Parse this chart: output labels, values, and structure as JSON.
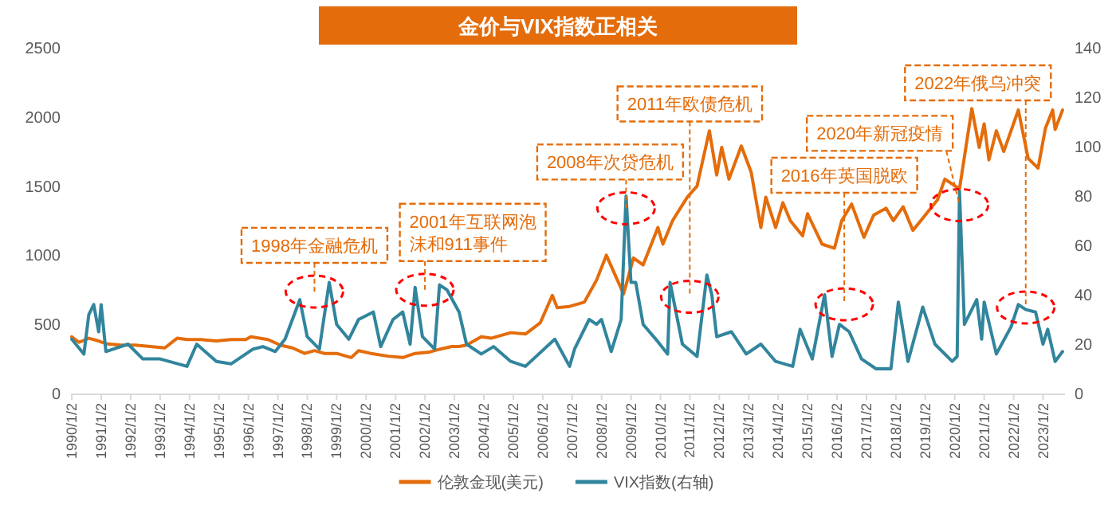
{
  "chart_data": {
    "type": "line",
    "title": "金价与VIX指数正相关",
    "xlim": [
      "1990-01-01",
      "2023-10-01"
    ],
    "xticks": [
      {
        "value": "1990-01-02",
        "label": "1990/1/2"
      },
      {
        "value": "1991-01-02",
        "label": "1991/1/2"
      },
      {
        "value": "1992-01-02",
        "label": "1992/1/2"
      },
      {
        "value": "1993-01-02",
        "label": "1993/1/2"
      },
      {
        "value": "1994-01-02",
        "label": "1994/1/2"
      },
      {
        "value": "1995-01-02",
        "label": "1995/1/2"
      },
      {
        "value": "1996-01-02",
        "label": "1996/1/2"
      },
      {
        "value": "1997-01-02",
        "label": "1997/1/2"
      },
      {
        "value": "1998-01-02",
        "label": "1998/1/2"
      },
      {
        "value": "1999-01-02",
        "label": "1999/1/2"
      },
      {
        "value": "2000-01-02",
        "label": "2000/1/2"
      },
      {
        "value": "2001-01-02",
        "label": "2001/1/2"
      },
      {
        "value": "2002-01-02",
        "label": "2002/1/2"
      },
      {
        "value": "2003-01-02",
        "label": "2003/1/2"
      },
      {
        "value": "2004-01-02",
        "label": "2004/1/2"
      },
      {
        "value": "2005-01-02",
        "label": "2005/1/2"
      },
      {
        "value": "2006-01-02",
        "label": "2006/1/2"
      },
      {
        "value": "2007-01-02",
        "label": "2007/1/2"
      },
      {
        "value": "2008-01-02",
        "label": "2008/1/2"
      },
      {
        "value": "2009-01-02",
        "label": "2009/1/2"
      },
      {
        "value": "2010-01-02",
        "label": "2010/1/2"
      },
      {
        "value": "2011-01-02",
        "label": "2011/1/2"
      },
      {
        "value": "2012-01-02",
        "label": "2012/1/2"
      },
      {
        "value": "2013-01-02",
        "label": "2013/1/2"
      },
      {
        "value": "2014-01-02",
        "label": "2014/1/2"
      },
      {
        "value": "2015-01-02",
        "label": "2015/1/2"
      },
      {
        "value": "2016-01-02",
        "label": "2016/1/2"
      },
      {
        "value": "2017-01-02",
        "label": "2017/1/2"
      },
      {
        "value": "2018-01-02",
        "label": "2018/1/2"
      },
      {
        "value": "2019-01-02",
        "label": "2019/1/2"
      },
      {
        "value": "2020-01-02",
        "label": "2020/1/2"
      },
      {
        "value": "2021-01-02",
        "label": "2021/1/2"
      },
      {
        "value": "2022-01-02",
        "label": "2022/1/2"
      },
      {
        "value": "2023-01-02",
        "label": "2023/1/2"
      }
    ],
    "ylim": [
      0,
      2500
    ],
    "yticks": [
      0,
      500,
      1000,
      1500,
      2000,
      2500
    ],
    "y2lim": [
      0,
      140
    ],
    "y2ticks": [
      0,
      20,
      40,
      60,
      80,
      100,
      120,
      140
    ],
    "grid": false,
    "legend": "bottom",
    "marker": "none",
    "line_style": "solid",
    "series": [
      {
        "name": "伦敦金现(美元)",
        "color": "#e46c0a",
        "x": [
          "1990-01",
          "1990-04",
          "1990-08",
          "1990-12",
          "1991-03",
          "1991-09",
          "1992-03",
          "1992-09",
          "1993-03",
          "1993-08",
          "1993-12",
          "1994-06",
          "1994-12",
          "1995-06",
          "1995-12",
          "1996-02",
          "1996-09",
          "1997-02",
          "1997-07",
          "1997-12",
          "1998-04",
          "1998-08",
          "1999-01",
          "1999-07",
          "1999-10",
          "2000-03",
          "2000-10",
          "2001-04",
          "2001-09",
          "2002-03",
          "2002-07",
          "2002-12",
          "2003-03",
          "2003-06",
          "2003-12",
          "2004-04",
          "2004-12",
          "2005-06",
          "2005-12",
          "2006-05",
          "2006-07",
          "2006-12",
          "2007-06",
          "2007-11",
          "2008-03",
          "2008-08",
          "2008-10",
          "2009-02",
          "2009-06",
          "2009-12",
          "2010-02",
          "2010-06",
          "2010-12",
          "2011-04",
          "2011-09",
          "2011-12",
          "2012-02",
          "2012-05",
          "2012-10",
          "2013-02",
          "2013-06",
          "2013-08",
          "2013-12",
          "2014-03",
          "2014-06",
          "2014-11",
          "2015-01",
          "2015-07",
          "2015-12",
          "2016-03",
          "2016-07",
          "2016-12",
          "2017-04",
          "2017-09",
          "2017-12",
          "2018-04",
          "2018-08",
          "2019-01",
          "2019-06",
          "2019-09",
          "2020-03",
          "2020-08",
          "2020-11",
          "2021-01",
          "2021-03",
          "2021-06",
          "2021-09",
          "2022-03",
          "2022-07",
          "2022-11",
          "2023-02",
          "2023-05",
          "2023-06",
          "2023-09"
        ],
        "values": [
          410,
          370,
          400,
          380,
          360,
          350,
          350,
          340,
          330,
          400,
          390,
          390,
          380,
          390,
          390,
          410,
          390,
          350,
          330,
          290,
          310,
          290,
          290,
          260,
          310,
          290,
          270,
          260,
          290,
          300,
          320,
          340,
          340,
          350,
          410,
          400,
          440,
          430,
          510,
          710,
          620,
          630,
          660,
          820,
          1000,
          800,
          720,
          980,
          930,
          1200,
          1080,
          1250,
          1420,
          1500,
          1900,
          1580,
          1780,
          1550,
          1790,
          1600,
          1200,
          1420,
          1200,
          1380,
          1250,
          1140,
          1300,
          1080,
          1050,
          1250,
          1370,
          1130,
          1290,
          1340,
          1250,
          1350,
          1180,
          1290,
          1400,
          1550,
          1480,
          2060,
          1780,
          1950,
          1690,
          1900,
          1750,
          2050,
          1700,
          1630,
          1920,
          2050,
          1910,
          2050
        ]
      },
      {
        "name": "VIX指数(右轴)",
        "color": "#31859c",
        "axis": "y2",
        "x": [
          "1990-01",
          "1990-06",
          "1990-08",
          "1990-10",
          "1990-12",
          "1991-01",
          "1991-03",
          "1991-12",
          "1992-06",
          "1993-01",
          "1993-12",
          "1994-04",
          "1994-12",
          "1995-06",
          "1996-03",
          "1996-07",
          "1996-12",
          "1997-04",
          "1997-10",
          "1998-01",
          "1998-06",
          "1998-10",
          "1999-01",
          "1999-06",
          "1999-10",
          "2000-04",
          "2000-07",
          "2000-12",
          "2001-04",
          "2001-07",
          "2001-09",
          "2001-12",
          "2002-05",
          "2002-07",
          "2002-10",
          "2003-03",
          "2003-06",
          "2003-12",
          "2004-05",
          "2004-12",
          "2005-06",
          "2006-06",
          "2006-12",
          "2007-02",
          "2007-08",
          "2007-11",
          "2008-01",
          "2008-05",
          "2008-09",
          "2008-11",
          "2009-01",
          "2009-03",
          "2009-06",
          "2009-12",
          "2010-04",
          "2010-05",
          "2010-10",
          "2011-04",
          "2011-08",
          "2011-10",
          "2011-12",
          "2012-06",
          "2012-12",
          "2013-06",
          "2013-12",
          "2014-07",
          "2014-10",
          "2015-03",
          "2015-08",
          "2015-11",
          "2016-02",
          "2016-06",
          "2016-11",
          "2017-05",
          "2017-11",
          "2018-02",
          "2018-06",
          "2018-12",
          "2019-05",
          "2019-12",
          "2020-02",
          "2020-03",
          "2020-05",
          "2020-10",
          "2020-12",
          "2021-01",
          "2021-06",
          "2021-12",
          "2022-03",
          "2022-06",
          "2022-10",
          "2023-01",
          "2023-03",
          "2023-06",
          "2023-09"
        ],
        "values": [
          22,
          16,
          32,
          36,
          25,
          36,
          17,
          20,
          14,
          14,
          11,
          20,
          13,
          12,
          18,
          19,
          17,
          22,
          38,
          23,
          18,
          45,
          28,
          22,
          30,
          33,
          19,
          30,
          33,
          20,
          43,
          23,
          18,
          44,
          42,
          33,
          20,
          16,
          19,
          13,
          11,
          22,
          11,
          18,
          30,
          28,
          30,
          17,
          30,
          80,
          45,
          45,
          28,
          21,
          16,
          45,
          20,
          15,
          48,
          40,
          23,
          25,
          16,
          20,
          13,
          11,
          26,
          14,
          40,
          15,
          28,
          25,
          14,
          10,
          10,
          37,
          13,
          35,
          20,
          13,
          15,
          82,
          28,
          38,
          22,
          37,
          16,
          27,
          36,
          34,
          33,
          20,
          26,
          13,
          17
        ]
      }
    ],
    "annotations": [
      {
        "text": "1998年金融危机",
        "x": "1998-04",
        "y": 737
      },
      {
        "text": "2001年互联网泡沫和911事件",
        "x": "2002-01",
        "y": 750
      },
      {
        "text": "2008年次贷危机",
        "x": "2008-11",
        "y": 1340
      },
      {
        "text": "2011年欧债危机",
        "x": "2011-01",
        "y": 700
      },
      {
        "text": "2016年英国脱欧",
        "x": "2016-04",
        "y": 645
      },
      {
        "text": "2020年新冠疫情",
        "x": "2020-03",
        "y": 1363
      },
      {
        "text": "2022年俄乌冲突",
        "x": "2022-06",
        "y": 622
      }
    ]
  }
}
